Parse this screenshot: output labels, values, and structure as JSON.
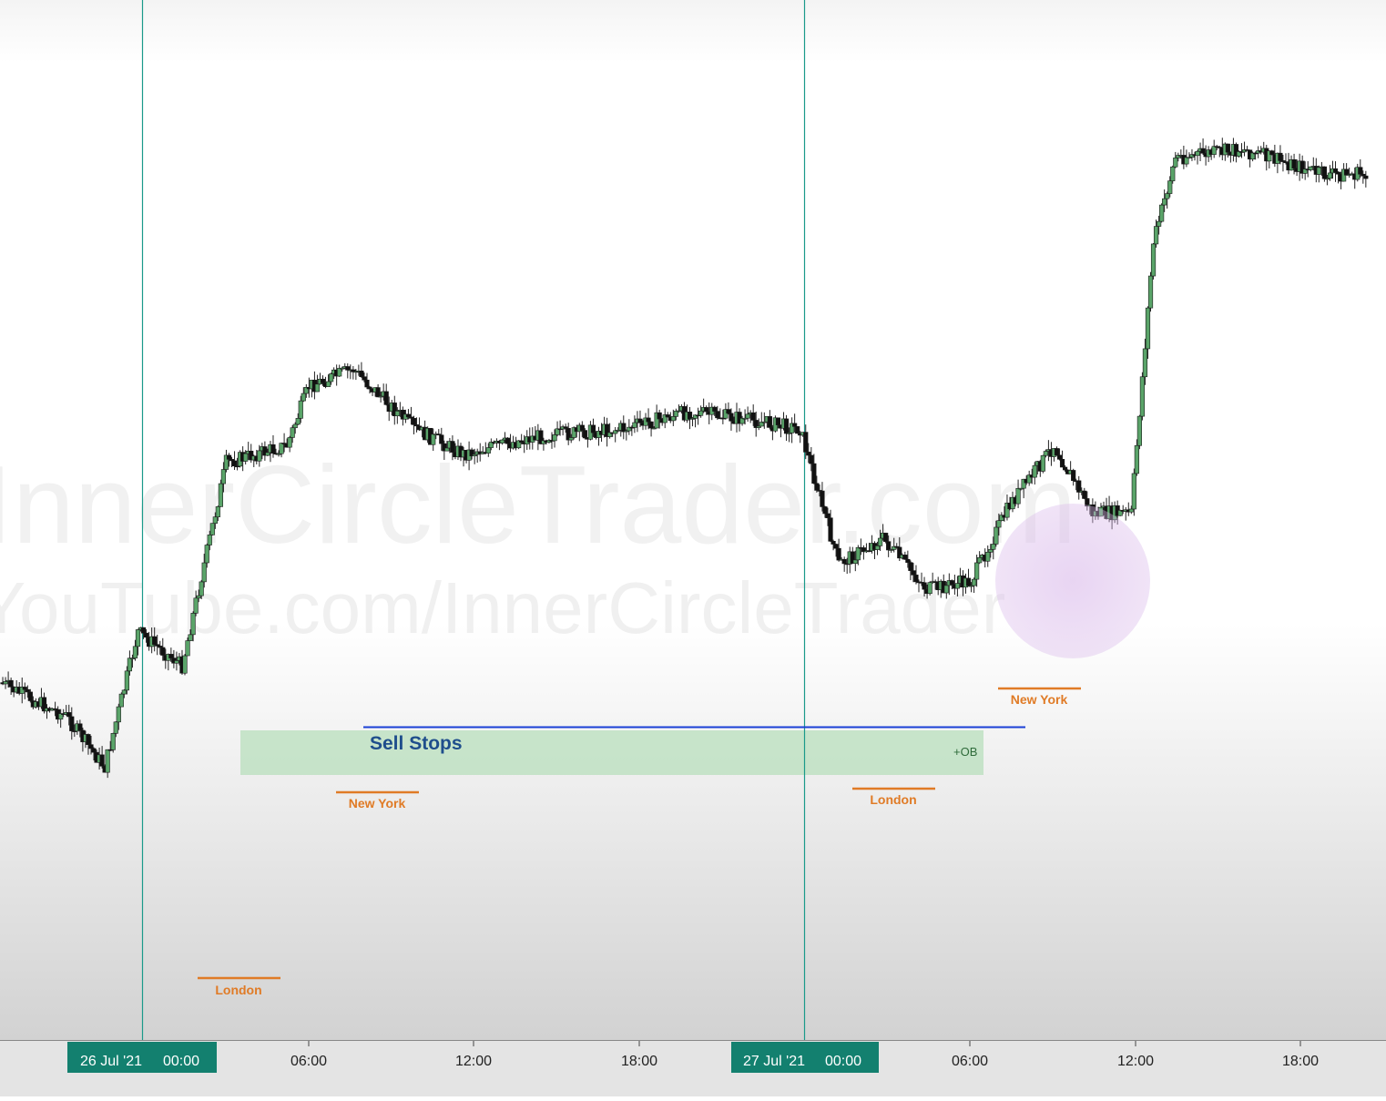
{
  "watermark": {
    "line1": "InnerCircleTrader.com",
    "line2": "YouTube.com/InnerCircleTrader"
  },
  "annotations": {
    "sell_stops": "Sell Stops",
    "order_block": "+OB",
    "sessions": [
      {
        "label": "London",
        "x_time": "26 Jul 02:30"
      },
      {
        "label": "New York",
        "x_time": "26 Jul 08:00"
      },
      {
        "label": "London",
        "x_time": "27 Jul 03:00"
      },
      {
        "label": "New York",
        "x_time": "27 Jul 08:30"
      }
    ]
  },
  "time_axis": {
    "highlight_labels": [
      {
        "date": "26 Jul '21",
        "time": "00:00"
      },
      {
        "date": "27 Jul '21",
        "time": "00:00"
      }
    ],
    "tick_labels": [
      "06:00",
      "12:00",
      "18:00",
      "06:00",
      "12:00",
      "18:00"
    ]
  },
  "colors": {
    "bull": "#5aa469",
    "bear": "#111111",
    "session_label": "#e07b26",
    "sell_stops_text": "#1f4e8c",
    "sell_stops_line": "#1a3fd6",
    "order_block_fill": "#b8dfbc",
    "day_divider": "#1a9a8a",
    "axis_highlight": "#13806f",
    "highlight_circle": "#cfa6e0"
  },
  "chart_data": {
    "type": "candlestick",
    "x_start": "25 Jul 21:00",
    "x_step_minutes": 15,
    "divider_times": [
      "26 Jul 00:00",
      "27 Jul 00:00"
    ],
    "price_path_anchors": [
      [
        0,
        0.72
      ],
      [
        24,
        0.76
      ],
      [
        38,
        0.82
      ],
      [
        50,
        0.66
      ],
      [
        66,
        0.7
      ],
      [
        82,
        0.46
      ],
      [
        104,
        0.44
      ],
      [
        112,
        0.37
      ],
      [
        128,
        0.35
      ],
      [
        150,
        0.42
      ],
      [
        168,
        0.45
      ],
      [
        194,
        0.43
      ],
      [
        226,
        0.42
      ],
      [
        250,
        0.4
      ],
      [
        272,
        0.41
      ],
      [
        290,
        0.42
      ],
      [
        304,
        0.58
      ],
      [
        320,
        0.55
      ],
      [
        336,
        0.61
      ],
      [
        352,
        0.6
      ],
      [
        366,
        0.51
      ],
      [
        382,
        0.44
      ],
      [
        396,
        0.52
      ],
      [
        410,
        0.52
      ],
      [
        418,
        0.2
      ],
      [
        426,
        0.1
      ],
      [
        450,
        0.09
      ],
      [
        480,
        0.12
      ],
      [
        494,
        0.12
      ],
      [
        520,
        0.11
      ],
      [
        550,
        0.12
      ]
    ],
    "sell_stops_level": 0.633,
    "order_block_range": [
      0.633,
      0.678
    ],
    "axis_min": 0,
    "axis_max": 1
  }
}
